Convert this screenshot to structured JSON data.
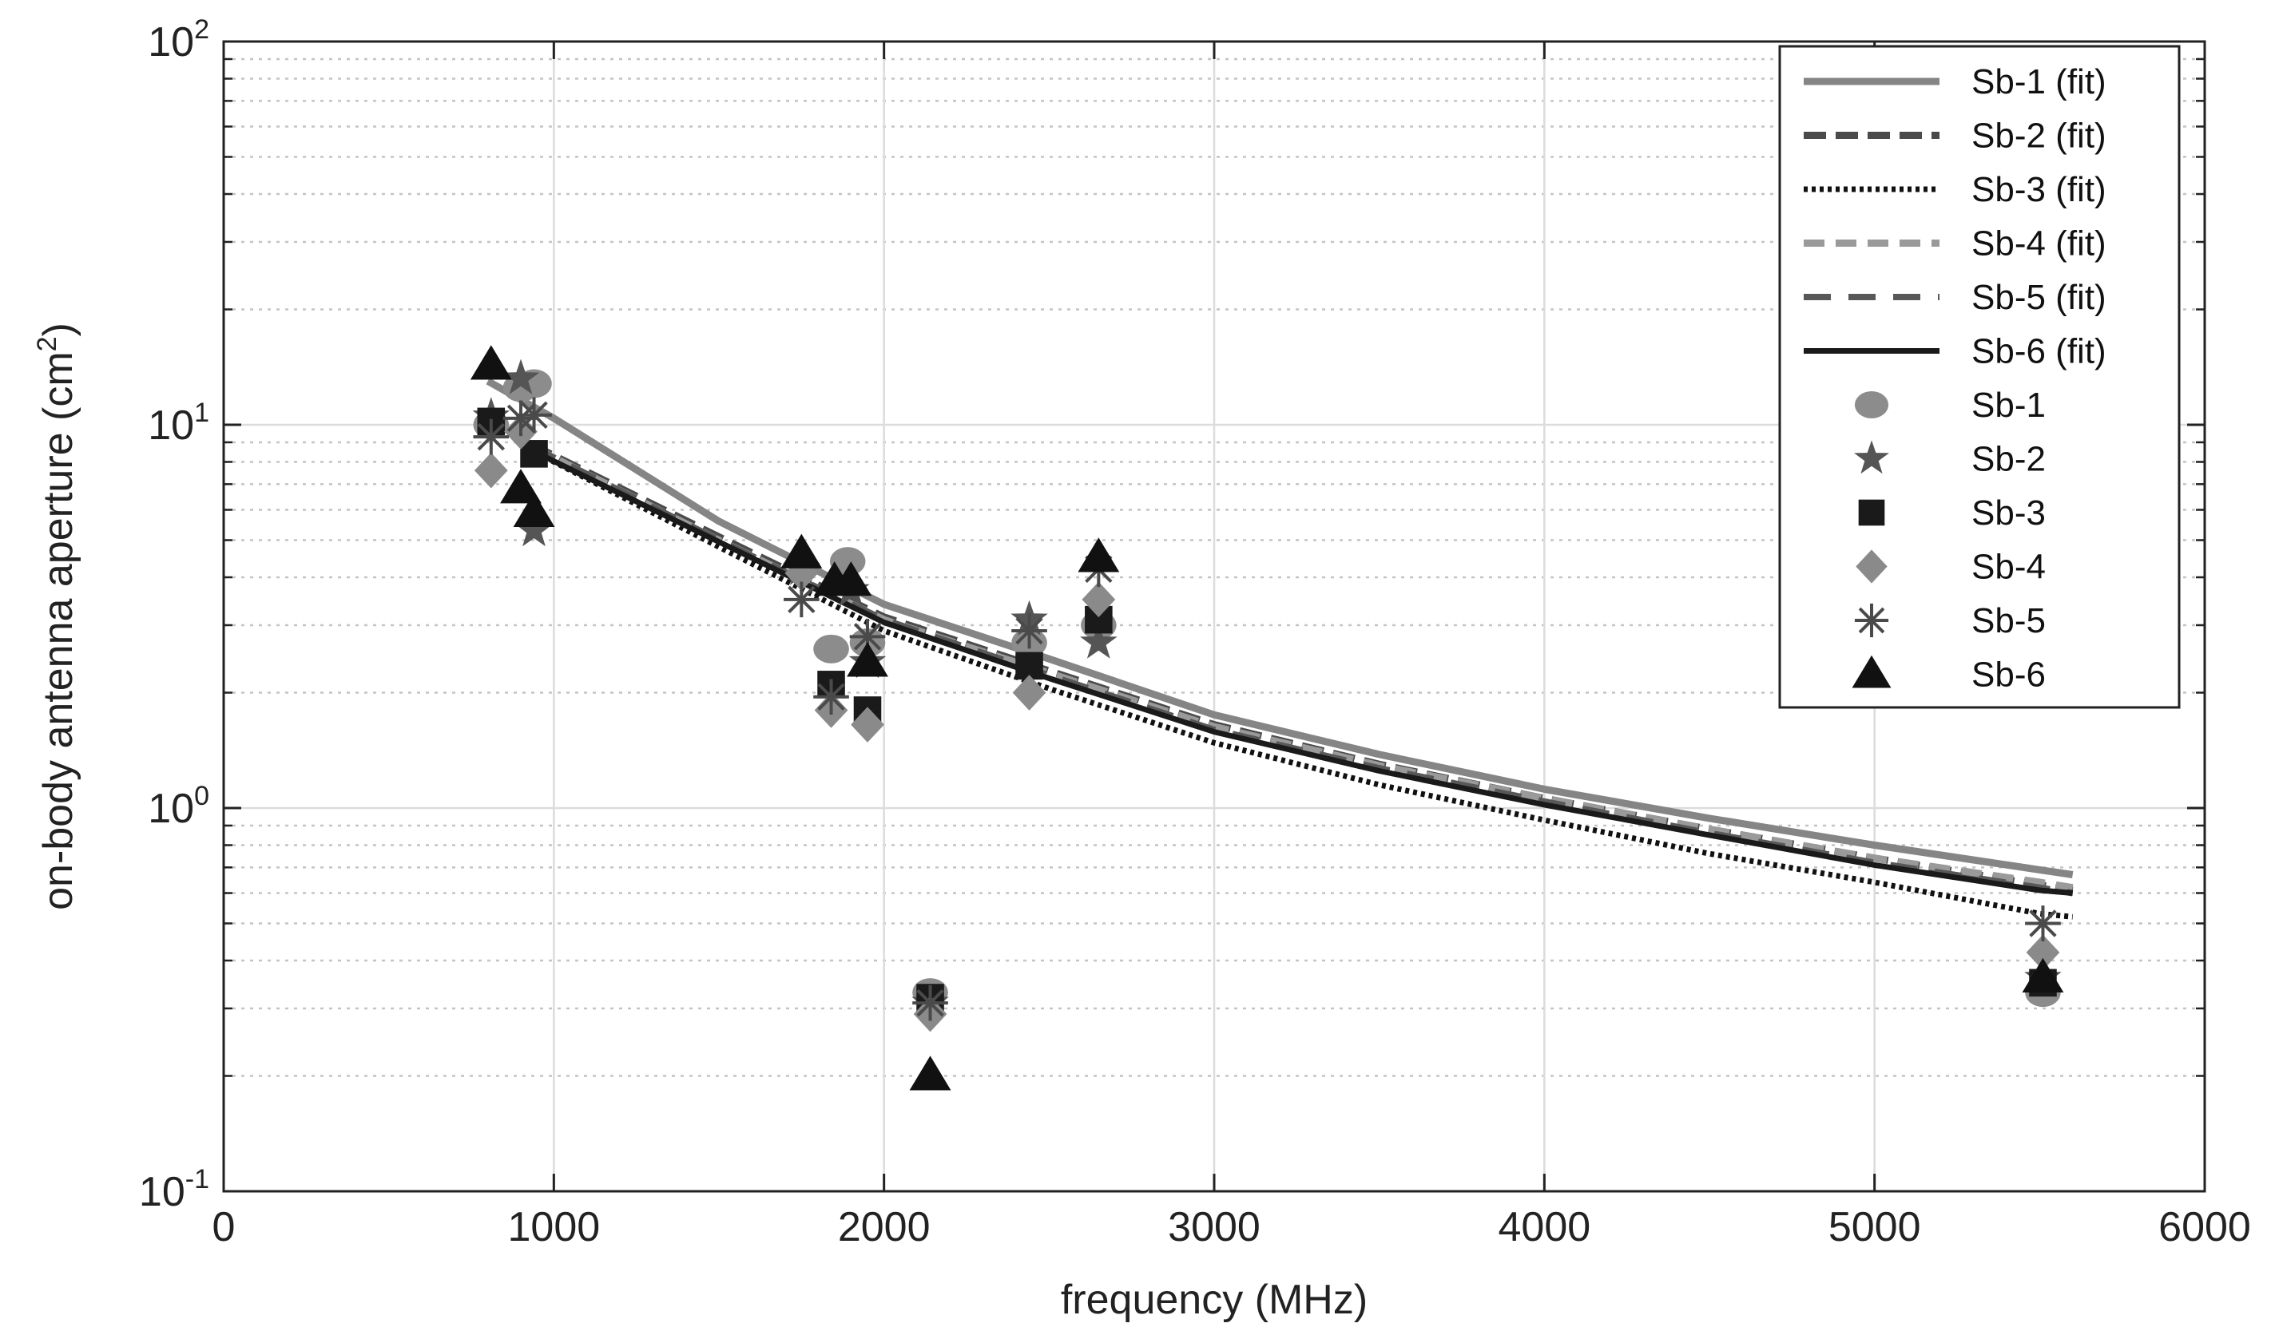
{
  "chart_data": {
    "type": "scatter",
    "title": "",
    "xlabel": "frequency (MHz)",
    "ylabel": "on-body antenna aperture (cm",
    "ylabel_sup": "2",
    "ylabel_end": ")",
    "xlim": [
      0,
      6000
    ],
    "ylim": [
      0.1,
      100
    ],
    "yscale": "log",
    "grid": true,
    "legend_position": "top-right",
    "x_ticks": [
      0,
      1000,
      2000,
      3000,
      4000,
      5000,
      6000
    ],
    "x_tick_labels": [
      "0",
      "1000",
      "2000",
      "3000",
      "4000",
      "5000",
      "6000"
    ],
    "y_ticks": [
      0.1,
      1,
      10,
      100
    ],
    "y_tick_labels": [
      {
        "base": "10",
        "exp": "-1"
      },
      {
        "base": "10",
        "exp": "0"
      },
      {
        "base": "10",
        "exp": "1"
      },
      {
        "base": "10",
        "exp": "2"
      }
    ],
    "fit_series": [
      {
        "name": "Sb-1 (fit)",
        "color": "#858585",
        "dash": "none",
        "width": 9,
        "points": [
          [
            800,
            13.0
          ],
          [
            1000,
            10.4
          ],
          [
            1500,
            5.6
          ],
          [
            2000,
            3.4
          ],
          [
            2500,
            2.45
          ],
          [
            3000,
            1.75
          ],
          [
            3500,
            1.38
          ],
          [
            4000,
            1.12
          ],
          [
            4500,
            0.94
          ],
          [
            5000,
            0.8
          ],
          [
            5500,
            0.69
          ],
          [
            5600,
            0.67
          ]
        ]
      },
      {
        "name": "Sb-2 (fit)",
        "color": "#4a4a4a",
        "dash": "28 12",
        "width": 9,
        "points": [
          [
            930,
            8.9
          ],
          [
            1500,
            5.1
          ],
          [
            2000,
            3.15
          ],
          [
            2500,
            2.28
          ],
          [
            3000,
            1.65
          ],
          [
            3500,
            1.3
          ],
          [
            4000,
            1.06
          ],
          [
            4500,
            0.88
          ],
          [
            5000,
            0.74
          ],
          [
            5500,
            0.63
          ],
          [
            5600,
            0.61
          ]
        ]
      },
      {
        "name": "Sb-3 (fit)",
        "color": "#111111",
        "dash": "5 5",
        "width": 7,
        "points": [
          [
            930,
            8.6
          ],
          [
            1500,
            4.8
          ],
          [
            2000,
            2.9
          ],
          [
            2500,
            2.05
          ],
          [
            3000,
            1.48
          ],
          [
            3500,
            1.15
          ],
          [
            4000,
            0.93
          ],
          [
            4500,
            0.76
          ],
          [
            5000,
            0.64
          ],
          [
            5500,
            0.53
          ],
          [
            5600,
            0.52
          ]
        ]
      },
      {
        "name": "Sb-4 (fit)",
        "color": "#9a9a9a",
        "dash": "26 14",
        "width": 9,
        "points": [
          [
            930,
            8.8
          ],
          [
            1500,
            5.0
          ],
          [
            2000,
            3.1
          ],
          [
            2500,
            2.25
          ],
          [
            3000,
            1.63
          ],
          [
            3500,
            1.29
          ],
          [
            4000,
            1.06
          ],
          [
            4500,
            0.88
          ],
          [
            5000,
            0.74
          ],
          [
            5500,
            0.64
          ],
          [
            5600,
            0.62
          ]
        ]
      },
      {
        "name": "Sb-5 (fit)",
        "color": "#585858",
        "dash": "34 22",
        "width": 8,
        "points": [
          [
            930,
            8.8
          ],
          [
            1500,
            5.0
          ],
          [
            2000,
            3.1
          ],
          [
            2500,
            2.22
          ],
          [
            3000,
            1.6
          ],
          [
            3500,
            1.27
          ],
          [
            4000,
            1.04
          ],
          [
            4500,
            0.86
          ],
          [
            5000,
            0.72
          ],
          [
            5500,
            0.62
          ],
          [
            5600,
            0.6
          ]
        ]
      },
      {
        "name": "Sb-6 (fit)",
        "color": "#1a1a1a",
        "dash": "none",
        "width": 7,
        "points": [
          [
            930,
            8.6
          ],
          [
            1500,
            4.95
          ],
          [
            2000,
            3.05
          ],
          [
            2500,
            2.18
          ],
          [
            3000,
            1.58
          ],
          [
            3500,
            1.25
          ],
          [
            4000,
            1.02
          ],
          [
            4500,
            0.85
          ],
          [
            5000,
            0.71
          ],
          [
            5500,
            0.61
          ],
          [
            5600,
            0.6
          ]
        ]
      }
    ],
    "scatter_series": [
      {
        "name": "Sb-1",
        "marker": "circle",
        "color": "#8c8c8c",
        "points": [
          [
            810,
            10.0
          ],
          [
            900,
            12.5
          ],
          [
            940,
            12.8
          ],
          [
            1840,
            2.6
          ],
          [
            1890,
            4.4
          ],
          [
            1950,
            2.7
          ],
          [
            2140,
            0.33
          ],
          [
            2440,
            2.7
          ],
          [
            2650,
            3.0
          ],
          [
            5510,
            0.33
          ]
        ]
      },
      {
        "name": "Sb-2",
        "marker": "star",
        "color": "#555555",
        "points": [
          [
            810,
            10.5
          ],
          [
            900,
            13.2
          ],
          [
            940,
            5.3
          ],
          [
            1750,
            4.2
          ],
          [
            1900,
            3.7
          ],
          [
            1950,
            2.4
          ],
          [
            2140,
            0.31
          ],
          [
            2440,
            3.1
          ],
          [
            2650,
            2.7
          ],
          [
            5510,
            0.36
          ]
        ]
      },
      {
        "name": "Sb-3",
        "marker": "square",
        "color": "#1a1a1a",
        "points": [
          [
            810,
            10.2
          ],
          [
            940,
            8.4
          ],
          [
            1840,
            2.1
          ],
          [
            1950,
            1.8
          ],
          [
            2140,
            0.32
          ],
          [
            2440,
            2.35
          ],
          [
            2650,
            3.1
          ],
          [
            5510,
            0.35
          ]
        ]
      },
      {
        "name": "Sb-4",
        "marker": "diamond",
        "color": "#8a8a8a",
        "points": [
          [
            810,
            7.6
          ],
          [
            900,
            9.6
          ],
          [
            1750,
            4.1
          ],
          [
            1840,
            1.8
          ],
          [
            1950,
            1.65
          ],
          [
            2140,
            0.29
          ],
          [
            2440,
            2.0
          ],
          [
            2650,
            3.5
          ],
          [
            5510,
            0.42
          ]
        ]
      },
      {
        "name": "Sb-5",
        "marker": "asterisk",
        "color": "#4a4a4a",
        "points": [
          [
            810,
            9.3
          ],
          [
            900,
            10.4
          ],
          [
            940,
            10.6
          ],
          [
            1750,
            3.5
          ],
          [
            1840,
            1.95
          ],
          [
            1950,
            2.8
          ],
          [
            2140,
            0.31
          ],
          [
            2440,
            2.9
          ],
          [
            2650,
            4.2
          ],
          [
            5510,
            0.5
          ]
        ]
      },
      {
        "name": "Sb-6",
        "marker": "triangle",
        "color": "#111111",
        "points": [
          [
            810,
            14.3
          ],
          [
            900,
            6.8
          ],
          [
            940,
            5.9
          ],
          [
            1750,
            4.6
          ],
          [
            1850,
            3.9
          ],
          [
            1900,
            3.9
          ],
          [
            1950,
            2.4
          ],
          [
            2140,
            0.2
          ],
          [
            2650,
            4.5
          ],
          [
            5510,
            0.36
          ]
        ]
      }
    ]
  }
}
